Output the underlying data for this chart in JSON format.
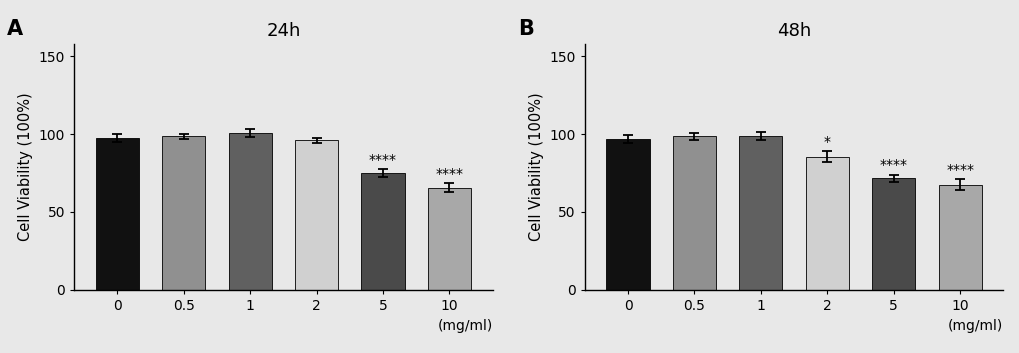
{
  "panel_A": {
    "title": "24h",
    "label": "A",
    "categories": [
      "0",
      "0.5",
      "1",
      "2",
      "5",
      "10"
    ],
    "values": [
      97.5,
      98.5,
      100.5,
      96.0,
      75.0,
      65.5
    ],
    "errors": [
      2.5,
      1.5,
      2.5,
      1.5,
      2.5,
      3.0
    ],
    "significance": [
      "",
      "",
      "",
      "",
      "****",
      "****"
    ],
    "bar_colors": [
      "#111111",
      "#909090",
      "#606060",
      "#d0d0d0",
      "#4a4a4a",
      "#a8a8a8"
    ]
  },
  "panel_B": {
    "title": "48h",
    "label": "B",
    "categories": [
      "0",
      "0.5",
      "1",
      "2",
      "5",
      "10"
    ],
    "values": [
      97.0,
      98.5,
      99.0,
      85.5,
      71.5,
      67.5
    ],
    "errors": [
      2.5,
      2.0,
      2.5,
      3.5,
      2.5,
      3.5
    ],
    "significance": [
      "",
      "",
      "",
      "*",
      "****",
      "****"
    ],
    "bar_colors": [
      "#111111",
      "#909090",
      "#606060",
      "#d0d0d0",
      "#4a4a4a",
      "#a8a8a8"
    ]
  },
  "ylabel": "Cell Viability (100%)",
  "xlabel": "(mg/ml)",
  "ylim": [
    0,
    158
  ],
  "yticks": [
    0,
    50,
    100,
    150
  ],
  "bar_width": 0.65,
  "bg_color": "#e8e8e8",
  "plot_bg_color": "#e8e8e8",
  "sig_fontsize": 10,
  "title_fontsize": 13,
  "label_fontsize": 15,
  "axis_fontsize": 10,
  "ylabel_fontsize": 10.5
}
